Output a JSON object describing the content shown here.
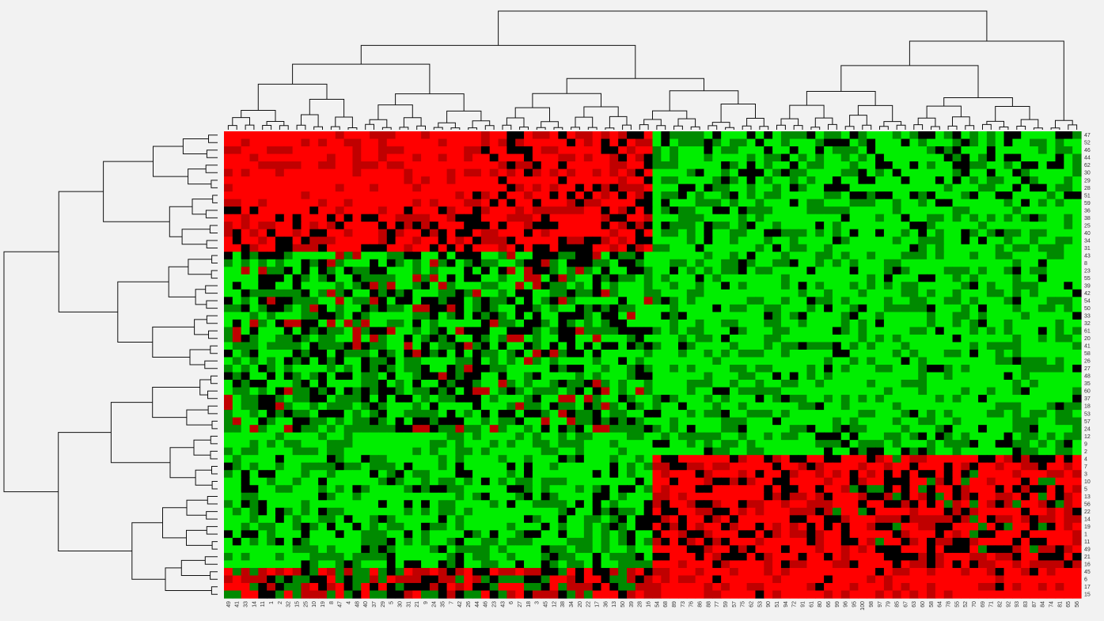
{
  "chart_data": {
    "type": "heatmap",
    "title": "",
    "xlabel": "",
    "ylabel": "",
    "row_labels": [
      "47",
      "52",
      "46",
      "44",
      "62",
      "30",
      "29",
      "28",
      "51",
      "59",
      "36",
      "38",
      "25",
      "40",
      "34",
      "31",
      "43",
      "8",
      "23",
      "55",
      "39",
      "42",
      "54",
      "50",
      "33",
      "32",
      "61",
      "20",
      "41",
      "58",
      "26",
      "27",
      "48",
      "35",
      "60",
      "37",
      "18",
      "53",
      "57",
      "24",
      "12",
      "9",
      "2",
      "4",
      "7",
      "3",
      "10",
      "5",
      "13",
      "56",
      "22",
      "14",
      "19",
      "1",
      "11",
      "49",
      "21",
      "16",
      "45",
      "6",
      "17",
      "15"
    ],
    "column_labels": [
      "49",
      "41",
      "33",
      "14",
      "11",
      "1",
      "2",
      "32",
      "15",
      "25",
      "10",
      "19",
      "8",
      "47",
      "4",
      "48",
      "40",
      "37",
      "29",
      "5",
      "30",
      "31",
      "21",
      "9",
      "24",
      "35",
      "7",
      "42",
      "26",
      "44",
      "46",
      "23",
      "43",
      "6",
      "27",
      "18",
      "3",
      "45",
      "12",
      "38",
      "34",
      "20",
      "22",
      "17",
      "36",
      "13",
      "50",
      "39",
      "28",
      "16",
      "54",
      "68",
      "89",
      "73",
      "76",
      "86",
      "88",
      "77",
      "59",
      "57",
      "75",
      "62",
      "53",
      "90",
      "51",
      "94",
      "72",
      "91",
      "61",
      "80",
      "66",
      "99",
      "96",
      "95",
      "100",
      "98",
      "97",
      "79",
      "85",
      "67",
      "63",
      "60",
      "58",
      "64",
      "78",
      "55",
      "52",
      "70",
      "69",
      "71",
      "82",
      "92",
      "93",
      "83",
      "87",
      "84",
      "74",
      "81",
      "65",
      "56"
    ],
    "color_scale": {
      "low": "#00ee00",
      "mid": "#000000",
      "high": "#ff0000"
    },
    "row_dendrogram": "left",
    "column_dendrogram": "top",
    "row_label_position": "right",
    "column_label_position": "bottom",
    "column_label_rotation": "vertical"
  }
}
